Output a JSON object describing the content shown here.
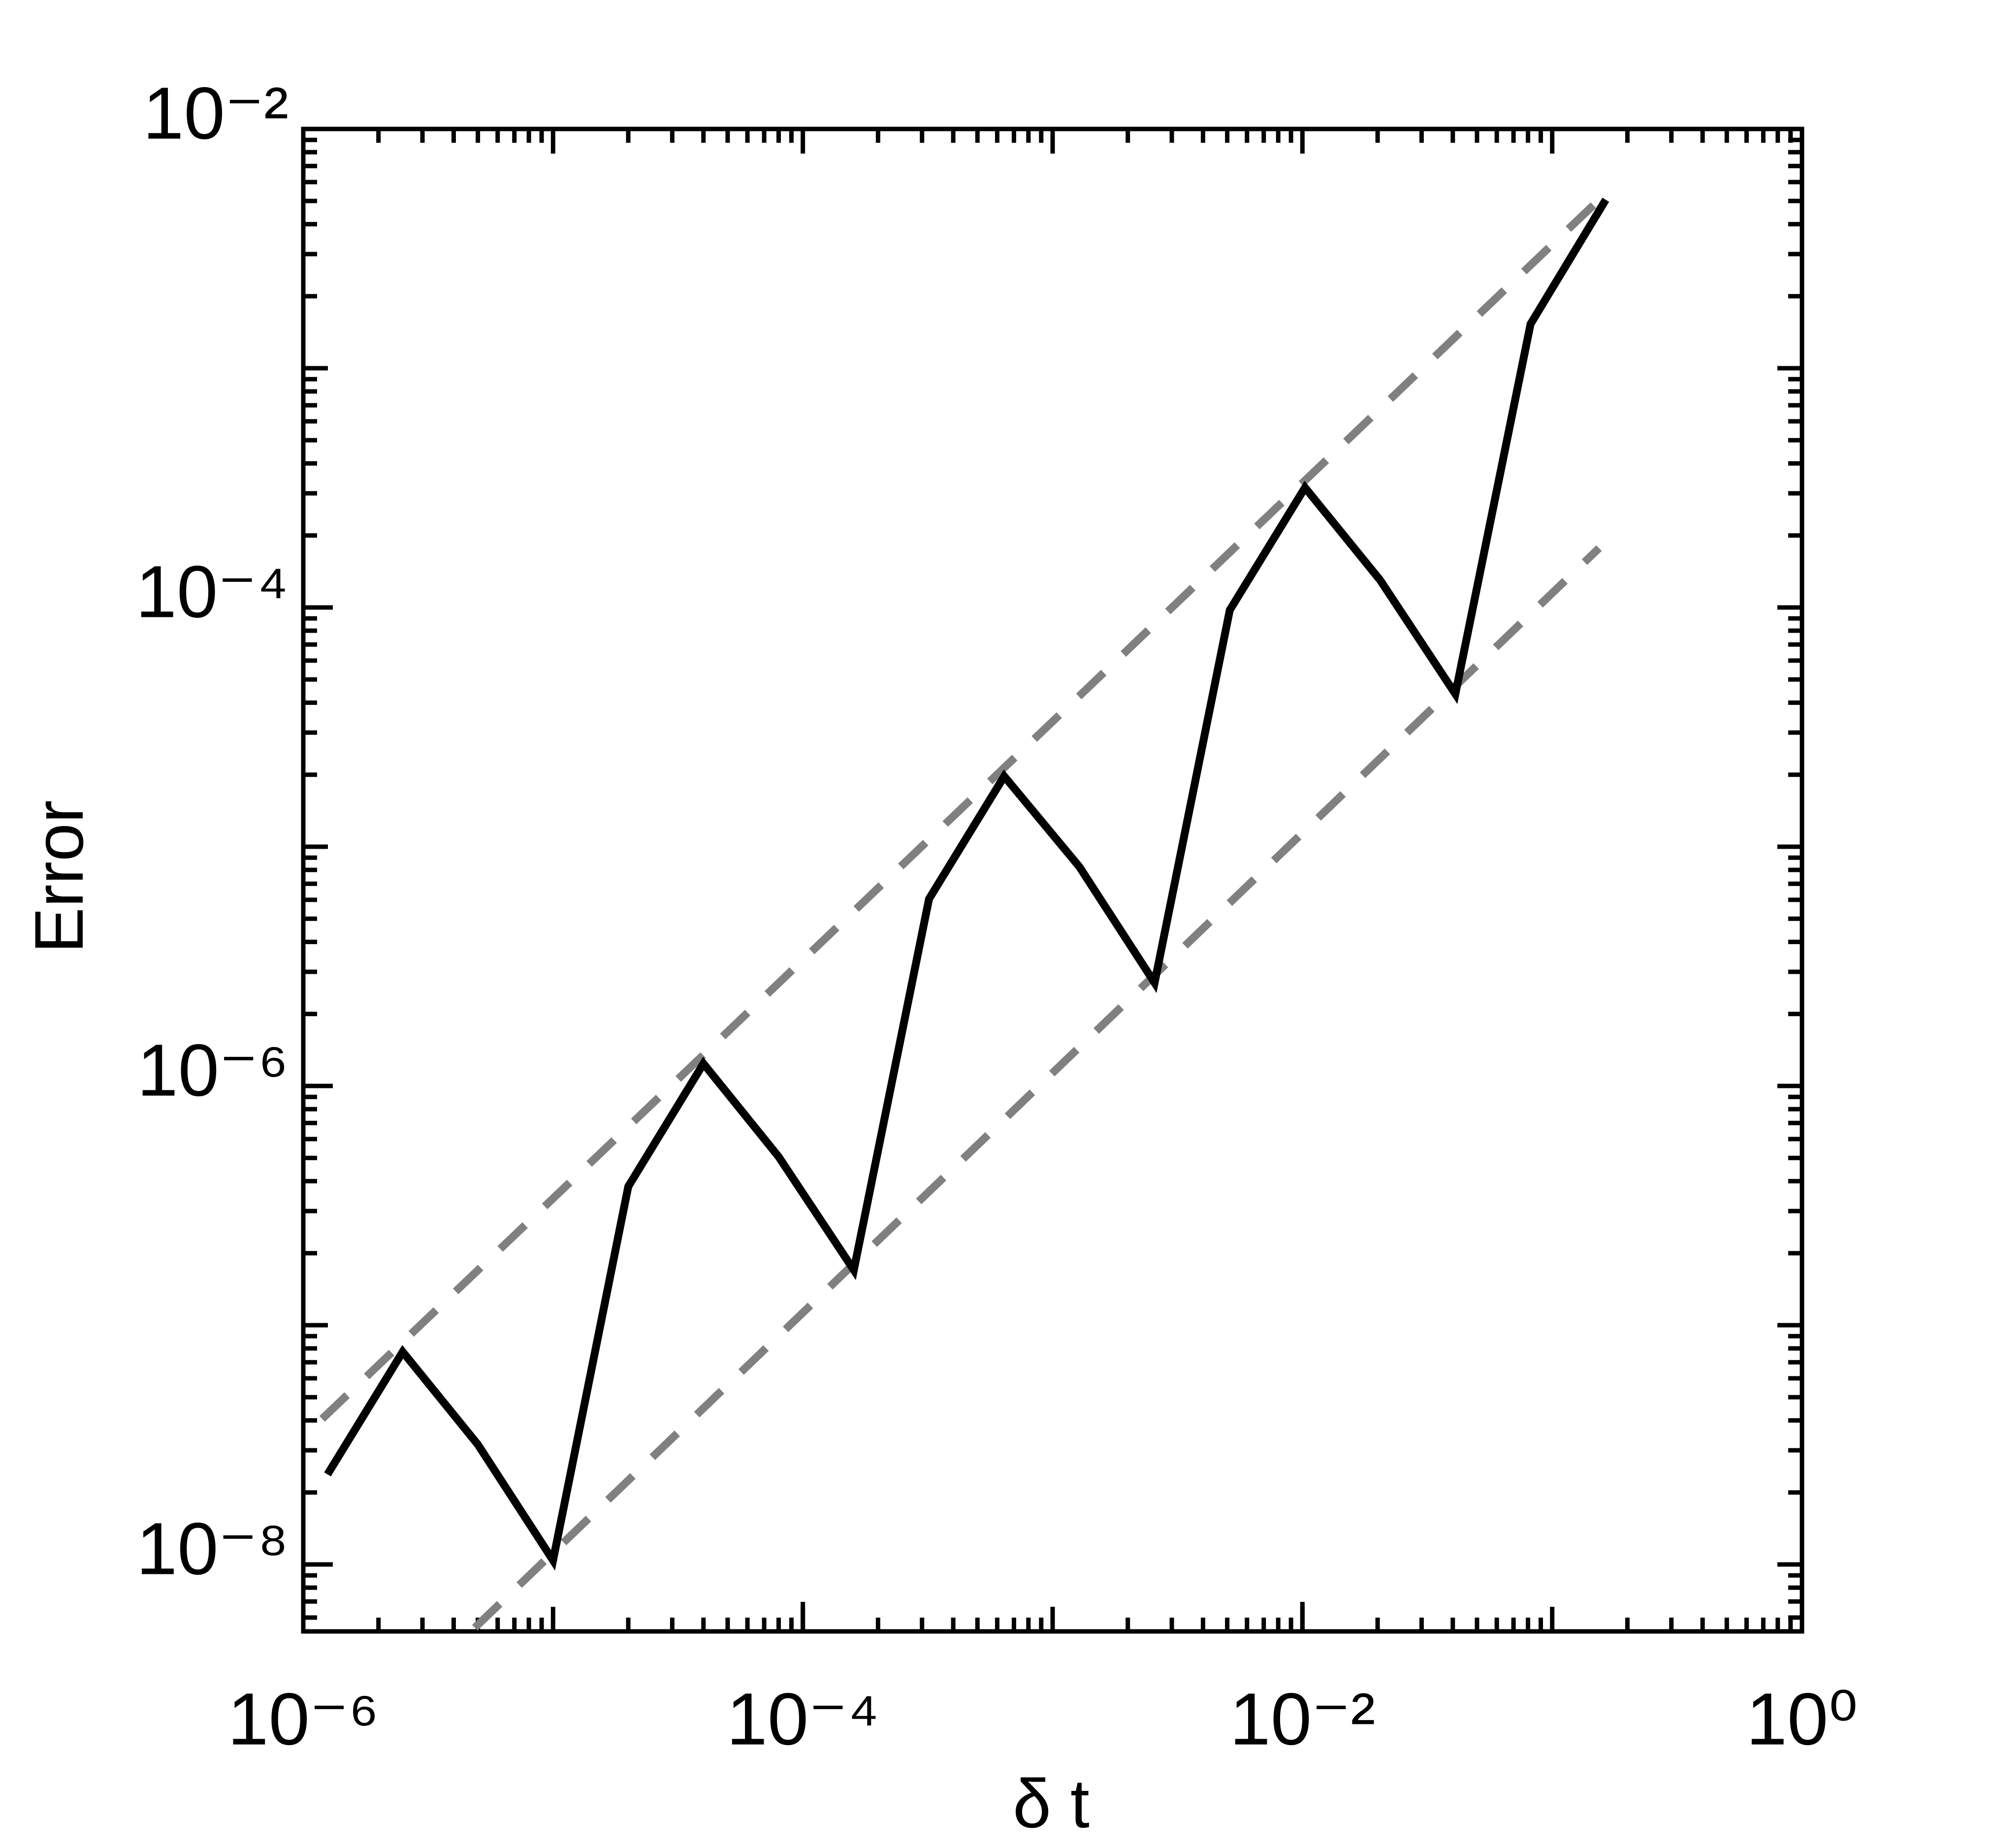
{
  "chart_data": {
    "type": "line",
    "xlabel": "δ t",
    "ylabel": "Error",
    "xscale": "log",
    "yscale": "log",
    "xlim": [
      1e-06,
      1
    ],
    "ylim": [
      5.25e-09,
      0.01
    ],
    "xticks": [
      {
        "value": 1e-06,
        "label": "10⁻⁶"
      },
      {
        "value": 0.0001,
        "label": "10⁻⁴"
      },
      {
        "value": 0.01,
        "label": "10⁻²"
      },
      {
        "value": 1,
        "label": "10⁰"
      }
    ],
    "yticks": [
      {
        "value": 1e-08,
        "label": "10⁻⁸"
      },
      {
        "value": 1e-06,
        "label": "10⁻⁶"
      },
      {
        "value": 0.0001,
        "label": "10⁻⁴"
      },
      {
        "value": 0.01,
        "label": "10⁻²"
      }
    ],
    "x": [
      1.25e-06,
      2.5e-06,
      5e-06,
      1e-05,
      2e-05,
      4e-05,
      8e-05,
      0.00016,
      0.00032,
      0.00064,
      0.00128,
      0.00256,
      0.00512,
      0.01024,
      0.02048,
      0.04096,
      0.08192,
      0.16384
    ],
    "series": [
      {
        "color": "#000000",
        "values": [
          2.38e-08,
          7.74e-08,
          3.17e-08,
          1.04e-08,
          3.8e-07,
          1.24e-06,
          5.06e-07,
          1.7e-07,
          6.05e-06,
          1.97e-05,
          8.24e-06,
          2.7e-06,
          9.75e-05,
          0.000317,
          0.00013,
          4.35e-05,
          0.00153,
          0.00506
        ]
      }
    ],
    "guides": [
      {
        "color": "#808080",
        "x": [
          1.19e-06,
          0.154
        ],
        "values": [
          4.06e-08,
          0.00506
        ]
      },
      {
        "color": "#808080",
        "x": [
          4.86e-06,
          0.154
        ],
        "values": [
          5.44e-09,
          0.000177
        ]
      }
    ]
  }
}
